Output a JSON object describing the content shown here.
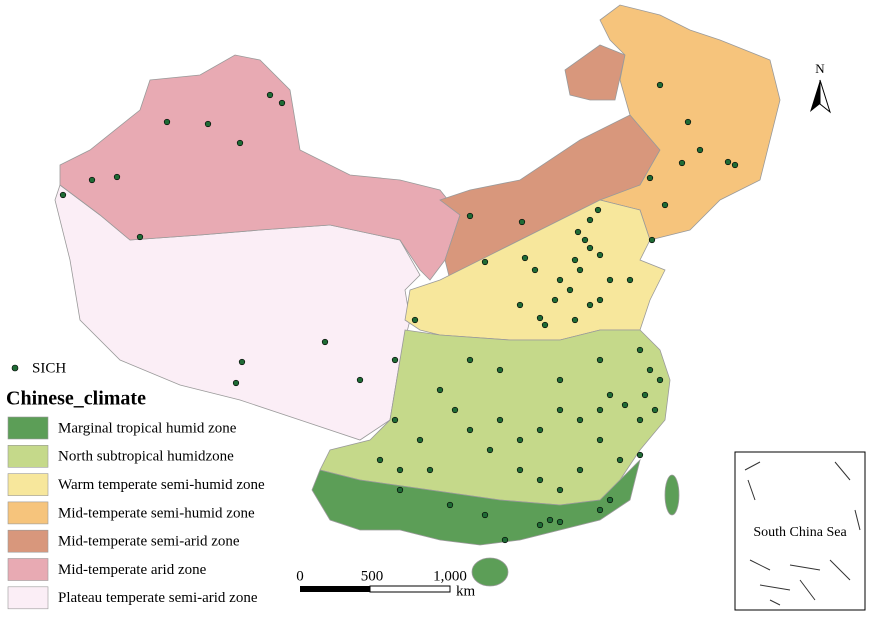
{
  "legend": {
    "point_label": "SICH",
    "point_color": "#1f6b35",
    "title": "Chinese_climate",
    "zones": [
      {
        "label": "Marginal tropical humid zone",
        "color": "#5c9e57"
      },
      {
        "label": "North subtropical humidzone",
        "color": "#c5d98a"
      },
      {
        "label": "Warm temperate semi-humid zone",
        "color": "#f7e79c"
      },
      {
        "label": "Mid-temperate semi-humid zone",
        "color": "#f6c47c"
      },
      {
        "label": "Mid-temperate semi-arid zone",
        "color": "#d8977c"
      },
      {
        "label": "Mid-temperate arid zone",
        "color": "#e8aab3"
      },
      {
        "label": "Plateau temperate semi-arid zone",
        "color": "#fbeef6"
      }
    ]
  },
  "scale_bar": {
    "labels": [
      "0",
      "500",
      "1,000"
    ],
    "unit": "km"
  },
  "north_arrow": "N",
  "inset": "South China Sea"
}
